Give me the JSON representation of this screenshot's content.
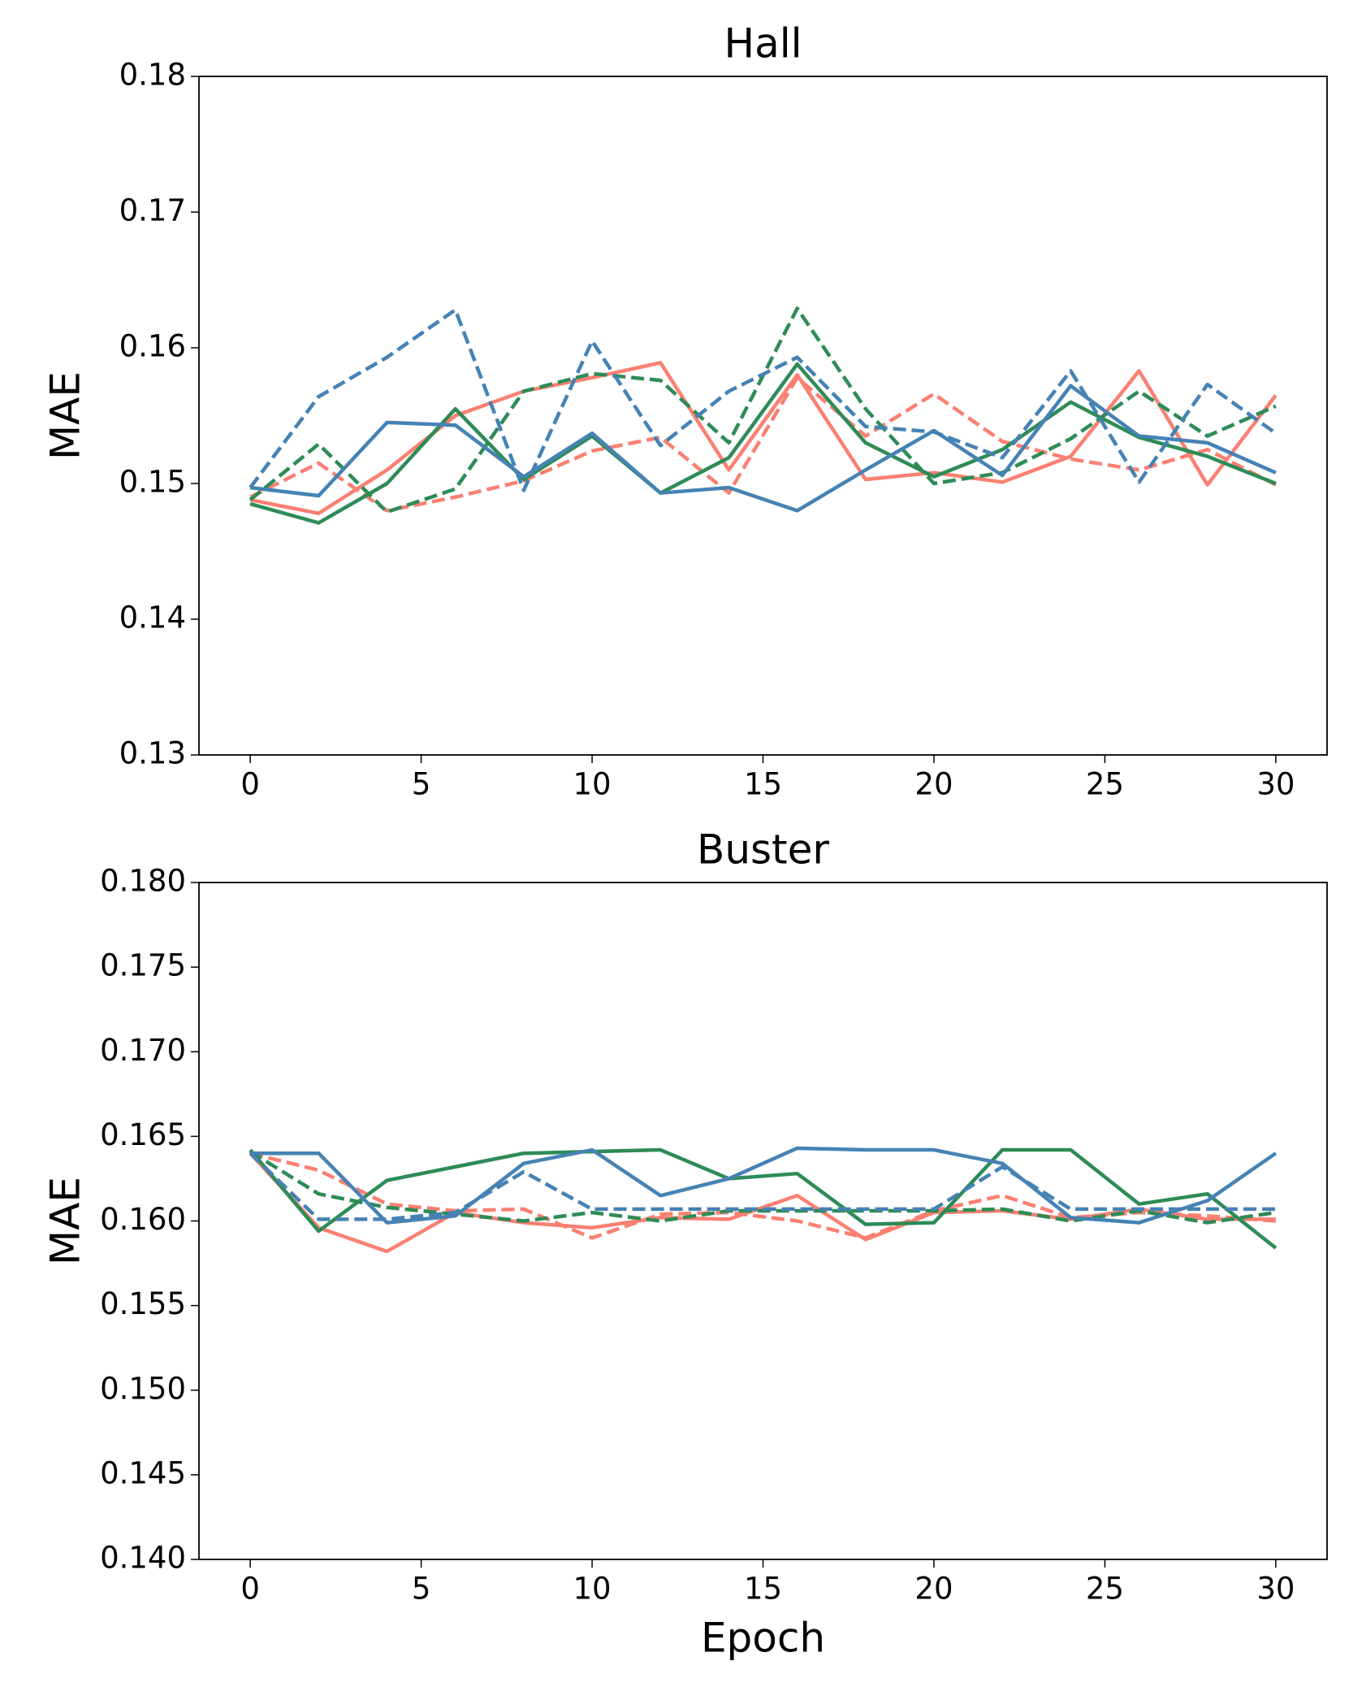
{
  "chart_data": [
    {
      "type": "line",
      "title": "Hall",
      "ylabel": "MAE",
      "x": [
        0,
        2,
        4,
        6,
        8,
        10,
        12,
        14,
        16,
        18,
        20,
        22,
        24,
        26,
        28,
        30
      ],
      "xlim": [
        -1.5,
        31.5
      ],
      "xticks": [
        0,
        5,
        10,
        15,
        20,
        25,
        30
      ],
      "ylim": [
        0.13,
        0.18
      ],
      "yticks": [
        0.13,
        0.14,
        0.15,
        0.16,
        0.17,
        0.18
      ],
      "series": [
        {
          "color": "#fa8072",
          "dashed": false,
          "values": [
            0.1488,
            0.1478,
            0.151,
            0.155,
            0.1568,
            0.1578,
            0.1589,
            0.151,
            0.158,
            0.1503,
            0.1508,
            0.1501,
            0.152,
            0.1583,
            0.1499,
            0.1565
          ]
        },
        {
          "color": "#fa8072",
          "dashed": true,
          "values": [
            0.149,
            0.1515,
            0.148,
            0.149,
            0.1502,
            0.1524,
            0.1534,
            0.1493,
            0.1578,
            0.1535,
            0.1566,
            0.1531,
            0.1518,
            0.151,
            0.1525,
            0.1499
          ]
        },
        {
          "color": "#2e8b57",
          "dashed": false,
          "values": [
            0.1485,
            0.1471,
            0.15,
            0.1555,
            0.1503,
            0.1535,
            0.1493,
            0.1519,
            0.1588,
            0.153,
            0.1505,
            0.1525,
            0.156,
            0.1534,
            0.152,
            0.15
          ]
        },
        {
          "color": "#2e8b57",
          "dashed": true,
          "values": [
            0.1488,
            0.1529,
            0.1479,
            0.1496,
            0.1568,
            0.1581,
            0.1576,
            0.153,
            0.1629,
            0.1555,
            0.15,
            0.1508,
            0.1533,
            0.1568,
            0.1535,
            0.1557
          ]
        },
        {
          "color": "#4682b4",
          "dashed": false,
          "values": [
            0.1497,
            0.1491,
            0.1545,
            0.1543,
            0.1505,
            0.1537,
            0.1493,
            0.1497,
            0.148,
            0.151,
            0.1539,
            0.1506,
            0.1572,
            0.1535,
            0.153,
            0.1508
          ]
        },
        {
          "color": "#4682b4",
          "dashed": true,
          "values": [
            0.1497,
            0.1564,
            0.1593,
            0.1628,
            0.1495,
            0.1605,
            0.1528,
            0.1568,
            0.1593,
            0.1542,
            0.1538,
            0.1519,
            0.1583,
            0.1501,
            0.1573,
            0.1537
          ]
        }
      ]
    },
    {
      "type": "line",
      "title": "Buster",
      "ylabel": "MAE",
      "xlabel": "Epoch",
      "x": [
        0,
        2,
        4,
        6,
        8,
        10,
        12,
        14,
        16,
        18,
        20,
        22,
        24,
        26,
        28,
        30
      ],
      "xlim": [
        -1.5,
        31.5
      ],
      "xticks": [
        0,
        5,
        10,
        15,
        20,
        25,
        30
      ],
      "ylim": [
        0.14,
        0.18
      ],
      "yticks": [
        {
          "value": 0.14,
          "label": "0.140"
        },
        0.145,
        {
          "value": 0.15,
          "label": "0.150"
        },
        0.155,
        {
          "value": 0.16,
          "label": "0.160"
        },
        0.165,
        {
          "value": 0.17,
          "label": "0.170"
        },
        0.175,
        {
          "value": 0.18,
          "label": "0.180"
        }
      ],
      "series": [
        {
          "color": "#fa8072",
          "dashed": false,
          "values": [
            0.164,
            0.1596,
            0.1582,
            0.1605,
            0.1599,
            0.1596,
            0.1602,
            0.1601,
            0.1615,
            0.1589,
            0.1605,
            0.1606,
            0.1601,
            0.1607,
            0.1601,
            0.1601
          ]
        },
        {
          "color": "#fa8072",
          "dashed": true,
          "values": [
            0.164,
            0.163,
            0.161,
            0.1606,
            0.1607,
            0.159,
            0.1604,
            0.1605,
            0.16,
            0.159,
            0.1606,
            0.1615,
            0.1602,
            0.1605,
            0.1603,
            0.16
          ]
        },
        {
          "color": "#2e8b57",
          "dashed": false,
          "values": [
            0.1642,
            0.1594,
            0.1624,
            0.1632,
            0.164,
            0.1641,
            0.1642,
            0.1625,
            0.1628,
            0.1598,
            0.1599,
            0.1642,
            0.1642,
            0.161,
            0.1616,
            0.1584
          ]
        },
        {
          "color": "#2e8b57",
          "dashed": true,
          "values": [
            0.1641,
            0.1616,
            0.1608,
            0.1604,
            0.16,
            0.1605,
            0.16,
            0.1606,
            0.1606,
            0.1606,
            0.1606,
            0.1607,
            0.16,
            0.1606,
            0.1599,
            0.1605
          ]
        },
        {
          "color": "#4682b4",
          "dashed": false,
          "values": [
            0.164,
            0.164,
            0.1599,
            0.1603,
            0.1634,
            0.1642,
            0.1615,
            0.1625,
            0.1643,
            0.1642,
            0.1642,
            0.1634,
            0.1602,
            0.1599,
            0.1612,
            0.164
          ]
        },
        {
          "color": "#4682b4",
          "dashed": true,
          "values": [
            0.164,
            0.1601,
            0.1601,
            0.1605,
            0.1629,
            0.1607,
            0.1607,
            0.1607,
            0.1607,
            0.1607,
            0.1607,
            0.1632,
            0.1607,
            0.1607,
            0.1607,
            0.1607
          ]
        }
      ]
    }
  ]
}
